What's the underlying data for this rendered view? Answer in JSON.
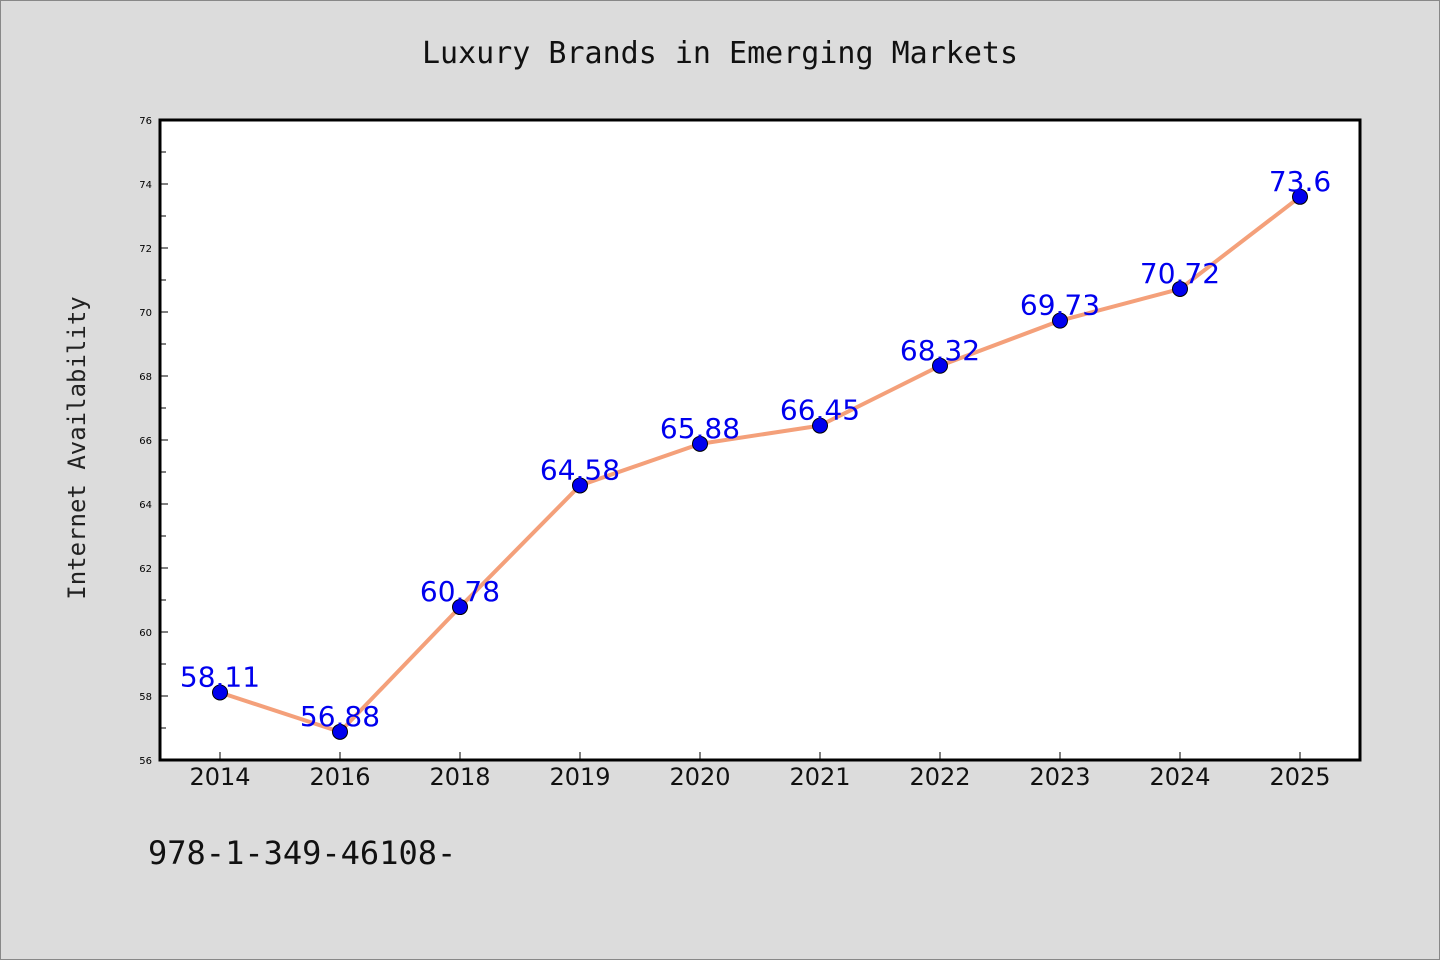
{
  "chart_data": {
    "type": "line",
    "title": "Luxury Brands in Emerging Markets",
    "xlabel": "",
    "ylabel": "Internet Availability",
    "categories": [
      "2014",
      "2016",
      "2018",
      "2019",
      "2020",
      "2021",
      "2022",
      "2023",
      "2024",
      "2025"
    ],
    "series": [
      {
        "values": [
          58.11,
          56.88,
          60.78,
          64.58,
          65.88,
          66.45,
          68.32,
          69.73,
          70.72,
          73.6
        ],
        "data_labels": [
          "58.11",
          "56.88",
          "60.78",
          "64.58",
          "65.88",
          "66.45",
          "68.32",
          "69.73",
          "70.72",
          "73.6"
        ],
        "line_color": "#f4a07a",
        "marker_color": "#0000ee"
      }
    ],
    "ylim": [
      56,
      76
    ],
    "yticks": [
      "56",
      "58",
      "60",
      "62",
      "64",
      "66",
      "68",
      "70",
      "72",
      "74",
      "76"
    ],
    "grid": false,
    "legend": "none"
  },
  "footer_text": "978-1-349-46108-"
}
